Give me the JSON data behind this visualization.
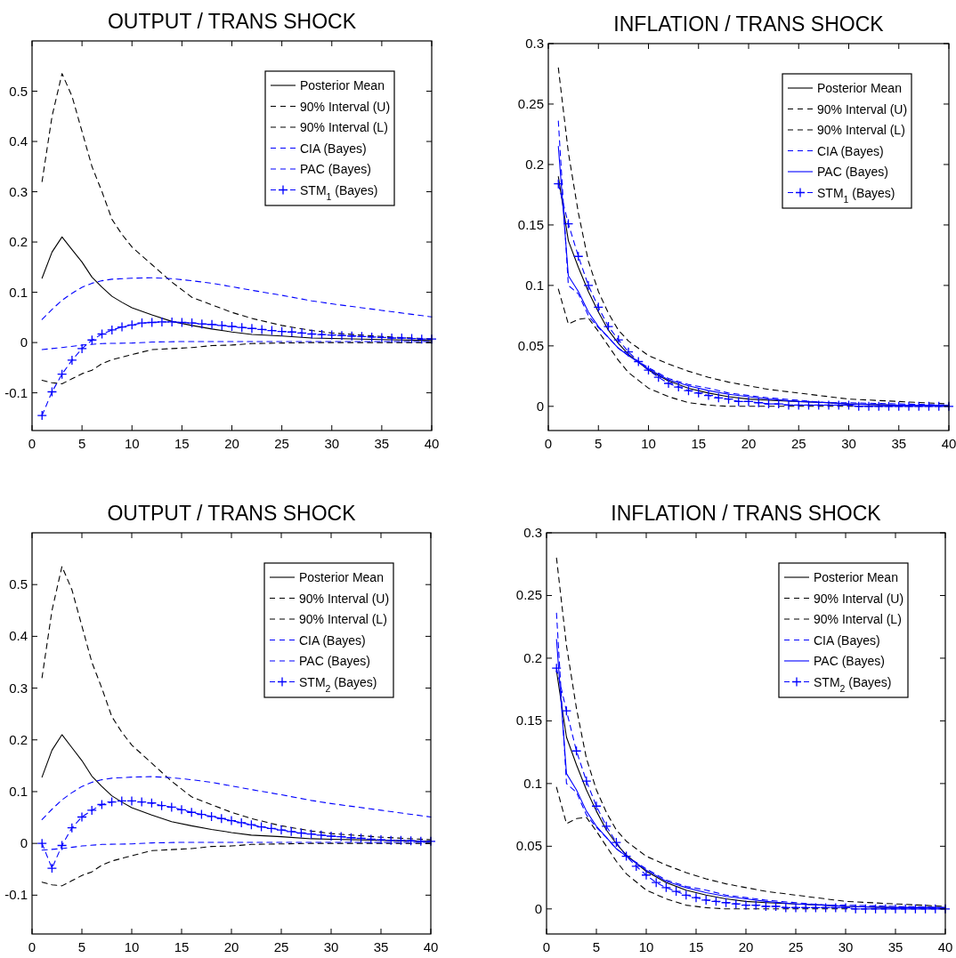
{
  "chart_data": [
    {
      "type": "line",
      "title": "OUTPUT / TRANS SHOCK",
      "xlim": [
        0,
        40
      ],
      "xticks": [
        0,
        5,
        10,
        15,
        20,
        25,
        30,
        35,
        40
      ],
      "ylim": [
        -0.175,
        0.6
      ],
      "yticks": [
        -0.1,
        0,
        0.1,
        0.2,
        0.3,
        0.4,
        0.5
      ],
      "grid": false,
      "legend": "top right",
      "series": [
        {
          "name": "Posterior Mean",
          "color": "#000000",
          "line_style": "solid",
          "marker": "none",
          "x": [
            1,
            2,
            3,
            4,
            5,
            6,
            7,
            8,
            9,
            10,
            12,
            14,
            16,
            18,
            20,
            22,
            25,
            28,
            30,
            35,
            40
          ],
          "values": [
            0.128,
            0.18,
            0.21,
            0.185,
            0.16,
            0.13,
            0.11,
            0.092,
            0.08,
            0.069,
            0.055,
            0.042,
            0.034,
            0.027,
            0.021,
            0.016,
            0.013,
            0.009,
            0.008,
            0.006,
            0.004
          ]
        },
        {
          "name": "90% Interval (U)",
          "color": "#000000",
          "line_style": "dashed",
          "marker": "none",
          "x": [
            1,
            2,
            3,
            4,
            5,
            6,
            7,
            8,
            9,
            10,
            12,
            14,
            16,
            18,
            20,
            22,
            25,
            28,
            30,
            35,
            40
          ],
          "values": [
            0.32,
            0.45,
            0.535,
            0.49,
            0.42,
            0.35,
            0.3,
            0.245,
            0.215,
            0.19,
            0.155,
            0.12,
            0.09,
            0.075,
            0.06,
            0.048,
            0.034,
            0.024,
            0.019,
            0.012,
            0.007
          ]
        },
        {
          "name": "90% Interval (L)",
          "color": "#000000",
          "line_style": "dashed",
          "marker": "none",
          "x": [
            1,
            2,
            3,
            4,
            5,
            6,
            7,
            8,
            10,
            12,
            14,
            16,
            18,
            20,
            22,
            25,
            28,
            30,
            35,
            40
          ],
          "values": [
            -0.075,
            -0.08,
            -0.082,
            -0.072,
            -0.062,
            -0.055,
            -0.042,
            -0.034,
            -0.024,
            -0.014,
            -0.012,
            -0.01,
            -0.006,
            -0.005,
            -0.002,
            -0.001,
            0,
            0,
            0,
            0
          ]
        },
        {
          "name": "CIA (Bayes)",
          "color": "#0000ff",
          "line_style": "dashed",
          "marker": "none",
          "x": [
            1,
            2,
            3,
            4,
            5,
            6,
            7,
            8,
            10,
            12,
            14,
            16,
            18,
            20,
            22,
            25,
            28,
            30,
            35,
            40
          ],
          "values": [
            0.046,
            0.066,
            0.084,
            0.098,
            0.11,
            0.118,
            0.123,
            0.126,
            0.128,
            0.129,
            0.127,
            0.123,
            0.118,
            0.111,
            0.104,
            0.094,
            0.083,
            0.077,
            0.064,
            0.051
          ]
        },
        {
          "name": "PAC (Bayes)",
          "color": "#0000ff",
          "line_style": "dashed",
          "marker": "none",
          "x": [
            1,
            3,
            5,
            7,
            10,
            12,
            15,
            20,
            25,
            30,
            35,
            40
          ],
          "values": [
            -0.014,
            -0.01,
            -0.005,
            -0.002,
            -0.001,
            0.001,
            0.002,
            0.002,
            0.002,
            0.002,
            0.002,
            0.002
          ]
        },
        {
          "name": "STM$_{1}$ (Bayes)",
          "color": "#0000ff",
          "line_style": "dashed",
          "marker": "cross",
          "x": [
            1,
            2,
            3,
            4,
            5,
            6,
            7,
            8,
            9,
            10,
            11,
            12,
            13,
            14,
            15,
            16,
            17,
            18,
            19,
            20,
            21,
            22,
            23,
            24,
            25,
            26,
            27,
            28,
            29,
            30,
            31,
            32,
            33,
            34,
            35,
            36,
            37,
            38,
            39,
            40
          ],
          "values": [
            -0.145,
            -0.098,
            -0.063,
            -0.035,
            -0.012,
            0.005,
            0.017,
            0.025,
            0.031,
            0.035,
            0.039,
            0.04,
            0.041,
            0.041,
            0.04,
            0.039,
            0.037,
            0.036,
            0.034,
            0.032,
            0.03,
            0.028,
            0.026,
            0.024,
            0.022,
            0.021,
            0.019,
            0.017,
            0.016,
            0.015,
            0.014,
            0.013,
            0.012,
            0.011,
            0.01,
            0.009,
            0.009,
            0.008,
            0.007,
            0.007
          ]
        }
      ]
    },
    {
      "type": "line",
      "title": "INFLATION / TRANS SHOCK",
      "xlim": [
        0,
        40
      ],
      "xticks": [
        0,
        5,
        10,
        15,
        20,
        25,
        30,
        35,
        40
      ],
      "ylim": [
        -0.02,
        0.3
      ],
      "yticks": [
        0,
        0.05,
        0.1,
        0.15,
        0.2,
        0.25,
        0.3
      ],
      "grid": false,
      "legend": "top right",
      "series": [
        {
          "name": "Posterior Mean",
          "color": "#000000",
          "line_style": "solid",
          "marker": "none",
          "x": [
            1,
            2,
            3,
            4,
            5,
            6,
            7,
            8,
            10,
            12,
            14,
            16,
            18,
            20,
            22,
            25,
            28,
            30,
            35,
            40
          ],
          "values": [
            0.19,
            0.137,
            0.115,
            0.095,
            0.078,
            0.063,
            0.052,
            0.043,
            0.03,
            0.021,
            0.015,
            0.011,
            0.008,
            0.006,
            0.005,
            0.004,
            0.003,
            0.002,
            0.001,
            0.001
          ]
        },
        {
          "name": "90% Interval (U)",
          "color": "#000000",
          "line_style": "dashed",
          "marker": "none",
          "x": [
            1,
            2,
            3,
            4,
            5,
            6,
            7,
            8,
            10,
            12,
            14,
            16,
            18,
            20,
            22,
            25,
            28,
            30,
            35,
            40
          ],
          "values": [
            0.28,
            0.21,
            0.16,
            0.12,
            0.095,
            0.077,
            0.063,
            0.054,
            0.042,
            0.035,
            0.029,
            0.024,
            0.02,
            0.017,
            0.014,
            0.011,
            0.008,
            0.006,
            0.004,
            0.002
          ]
        },
        {
          "name": "90% Interval (L)",
          "color": "#000000",
          "line_style": "dashed",
          "marker": "none",
          "x": [
            1,
            2,
            3,
            4,
            5,
            6,
            7,
            8,
            10,
            12,
            14,
            16,
            18,
            20,
            22,
            25,
            28,
            30,
            35,
            40
          ],
          "values": [
            0.097,
            0.068,
            0.072,
            0.073,
            0.062,
            0.05,
            0.038,
            0.028,
            0.015,
            0.008,
            0.003,
            0.001,
            0,
            0,
            0,
            0,
            0,
            0,
            0,
            0
          ]
        },
        {
          "name": "CIA (Bayes)",
          "color": "#0000ff",
          "line_style": "dashed",
          "marker": "none",
          "x": [
            1,
            2,
            3,
            4,
            5,
            6,
            7,
            8,
            10,
            12,
            14,
            16,
            18,
            20,
            22,
            25,
            28,
            30,
            35,
            40
          ],
          "values": [
            0.236,
            0.1,
            0.093,
            0.075,
            0.065,
            0.057,
            0.048,
            0.042,
            0.032,
            0.023,
            0.018,
            0.015,
            0.011,
            0.009,
            0.007,
            0.005,
            0.003,
            0.003,
            0.002,
            0.001
          ]
        },
        {
          "name": "PAC (Bayes)",
          "color": "#0000ff",
          "line_style": "solid",
          "marker": "none",
          "x": [
            1,
            2,
            3,
            4,
            5,
            6,
            7,
            8,
            10,
            12,
            14,
            16,
            18,
            20,
            22,
            25,
            28,
            30,
            35,
            40
          ],
          "values": [
            0.215,
            0.108,
            0.095,
            0.078,
            0.066,
            0.057,
            0.048,
            0.042,
            0.031,
            0.022,
            0.017,
            0.013,
            0.01,
            0.008,
            0.006,
            0.004,
            0.003,
            0.002,
            0.001,
            0.001
          ]
        },
        {
          "name": "STM$_{1}$ (Bayes)",
          "color": "#0000ff",
          "line_style": "dashed",
          "marker": "cross",
          "x": [
            1,
            2,
            3,
            4,
            5,
            6,
            7,
            8,
            9,
            10,
            11,
            12,
            13,
            14,
            15,
            16,
            17,
            18,
            19,
            20,
            21,
            22,
            23,
            24,
            25,
            26,
            27,
            28,
            29,
            30,
            31,
            32,
            33,
            34,
            35,
            36,
            37,
            38,
            39,
            40
          ],
          "values": [
            0.184,
            0.151,
            0.124,
            0.1,
            0.082,
            0.066,
            0.055,
            0.045,
            0.037,
            0.03,
            0.024,
            0.019,
            0.016,
            0.013,
            0.011,
            0.009,
            0.007,
            0.006,
            0.004,
            0.004,
            0.003,
            0.002,
            0.002,
            0.001,
            0.001,
            0.001,
            0.001,
            0.001,
            0.001,
            0.001,
            0,
            0,
            0,
            0,
            0,
            0,
            0,
            0,
            0,
            0
          ]
        }
      ]
    },
    {
      "type": "line",
      "title": "OUTPUT / TRANS SHOCK",
      "xlim": [
        0,
        40
      ],
      "xticks": [
        0,
        5,
        10,
        15,
        20,
        25,
        30,
        35,
        40
      ],
      "ylim": [
        -0.175,
        0.6
      ],
      "yticks": [
        -0.1,
        0,
        0.1,
        0.2,
        0.3,
        0.4,
        0.5
      ],
      "grid": false,
      "legend": "top right",
      "series": [
        {
          "name": "Posterior Mean",
          "color": "#000000",
          "line_style": "solid",
          "marker": "none",
          "x": [
            1,
            2,
            3,
            4,
            5,
            6,
            7,
            8,
            9,
            10,
            12,
            14,
            16,
            18,
            20,
            22,
            25,
            28,
            30,
            35,
            40
          ],
          "values": [
            0.128,
            0.18,
            0.21,
            0.185,
            0.16,
            0.13,
            0.11,
            0.092,
            0.08,
            0.069,
            0.055,
            0.042,
            0.034,
            0.027,
            0.021,
            0.016,
            0.013,
            0.009,
            0.008,
            0.006,
            0.004
          ]
        },
        {
          "name": "90% Interval (U)",
          "color": "#000000",
          "line_style": "dashed",
          "marker": "none",
          "x": [
            1,
            2,
            3,
            4,
            5,
            6,
            7,
            8,
            9,
            10,
            12,
            14,
            16,
            18,
            20,
            22,
            25,
            28,
            30,
            35,
            40
          ],
          "values": [
            0.32,
            0.45,
            0.535,
            0.49,
            0.42,
            0.35,
            0.3,
            0.245,
            0.215,
            0.19,
            0.155,
            0.12,
            0.09,
            0.075,
            0.06,
            0.048,
            0.034,
            0.024,
            0.019,
            0.012,
            0.007
          ]
        },
        {
          "name": "90% Interval (L)",
          "color": "#000000",
          "line_style": "dashed",
          "marker": "none",
          "x": [
            1,
            2,
            3,
            4,
            5,
            6,
            7,
            8,
            10,
            12,
            14,
            16,
            18,
            20,
            22,
            25,
            28,
            30,
            35,
            40
          ],
          "values": [
            -0.075,
            -0.08,
            -0.082,
            -0.072,
            -0.062,
            -0.055,
            -0.042,
            -0.034,
            -0.024,
            -0.014,
            -0.012,
            -0.01,
            -0.006,
            -0.005,
            -0.002,
            -0.001,
            0,
            0,
            0,
            0
          ]
        },
        {
          "name": "CIA (Bayes)",
          "color": "#0000ff",
          "line_style": "dashed",
          "marker": "none",
          "x": [
            1,
            2,
            3,
            4,
            5,
            6,
            7,
            8,
            10,
            12,
            14,
            16,
            18,
            20,
            22,
            25,
            28,
            30,
            35,
            40
          ],
          "values": [
            0.046,
            0.066,
            0.084,
            0.098,
            0.11,
            0.118,
            0.123,
            0.126,
            0.128,
            0.129,
            0.127,
            0.123,
            0.118,
            0.111,
            0.104,
            0.094,
            0.083,
            0.077,
            0.064,
            0.051
          ]
        },
        {
          "name": "PAC (Bayes)",
          "color": "#0000ff",
          "line_style": "dashed",
          "marker": "none",
          "x": [
            1,
            3,
            5,
            7,
            10,
            12,
            15,
            20,
            25,
            30,
            35,
            40
          ],
          "values": [
            -0.013,
            -0.01,
            -0.005,
            -0.002,
            -0.001,
            0.001,
            0.002,
            0.002,
            0.002,
            0.002,
            0.002,
            0.002
          ]
        },
        {
          "name": "STM$_{2}$ (Bayes)",
          "color": "#0000ff",
          "line_style": "dashed",
          "marker": "cross",
          "x": [
            1,
            2,
            3,
            4,
            5,
            6,
            7,
            8,
            9,
            10,
            11,
            12,
            13,
            14,
            15,
            16,
            17,
            18,
            19,
            20,
            21,
            22,
            23,
            24,
            25,
            26,
            27,
            28,
            29,
            30,
            31,
            32,
            33,
            34,
            35,
            36,
            37,
            38,
            39,
            40
          ],
          "values": [
            0,
            -0.048,
            -0.004,
            0.03,
            0.051,
            0.064,
            0.075,
            0.08,
            0.082,
            0.082,
            0.08,
            0.078,
            0.073,
            0.07,
            0.065,
            0.06,
            0.056,
            0.052,
            0.048,
            0.044,
            0.04,
            0.036,
            0.032,
            0.029,
            0.026,
            0.023,
            0.02,
            0.018,
            0.016,
            0.014,
            0.013,
            0.011,
            0.01,
            0.008,
            0.007,
            0.006,
            0.006,
            0.005,
            0.004,
            0.004
          ]
        }
      ]
    },
    {
      "type": "line",
      "title": "INFLATION / TRANS SHOCK",
      "xlim": [
        0,
        40
      ],
      "xticks": [
        0,
        5,
        10,
        15,
        20,
        25,
        30,
        35,
        40
      ],
      "ylim": [
        -0.02,
        0.3
      ],
      "yticks": [
        0,
        0.05,
        0.1,
        0.15,
        0.2,
        0.25,
        0.3
      ],
      "grid": false,
      "legend": "top right",
      "series": [
        {
          "name": "Posterior Mean",
          "color": "#000000",
          "line_style": "solid",
          "marker": "none",
          "x": [
            1,
            2,
            3,
            4,
            5,
            6,
            7,
            8,
            10,
            12,
            14,
            16,
            18,
            20,
            22,
            25,
            28,
            30,
            35,
            40
          ],
          "values": [
            0.19,
            0.137,
            0.115,
            0.095,
            0.078,
            0.063,
            0.052,
            0.043,
            0.03,
            0.021,
            0.015,
            0.011,
            0.008,
            0.006,
            0.005,
            0.004,
            0.003,
            0.002,
            0.001,
            0.001
          ]
        },
        {
          "name": "90% Interval (U)",
          "color": "#000000",
          "line_style": "dashed",
          "marker": "none",
          "x": [
            1,
            2,
            3,
            4,
            5,
            6,
            7,
            8,
            10,
            12,
            14,
            16,
            18,
            20,
            22,
            25,
            28,
            30,
            35,
            40
          ],
          "values": [
            0.28,
            0.21,
            0.16,
            0.12,
            0.095,
            0.077,
            0.063,
            0.054,
            0.042,
            0.035,
            0.029,
            0.024,
            0.02,
            0.017,
            0.014,
            0.011,
            0.008,
            0.006,
            0.004,
            0.002
          ]
        },
        {
          "name": "90% Interval (L)",
          "color": "#000000",
          "line_style": "dashed",
          "marker": "none",
          "x": [
            1,
            2,
            3,
            4,
            5,
            6,
            7,
            8,
            10,
            12,
            14,
            16,
            18,
            20,
            22,
            25,
            28,
            30,
            35,
            40
          ],
          "values": [
            0.097,
            0.068,
            0.072,
            0.073,
            0.062,
            0.05,
            0.038,
            0.028,
            0.015,
            0.008,
            0.003,
            0.001,
            0,
            0,
            0,
            0,
            0,
            0,
            0,
            0
          ]
        },
        {
          "name": "CIA (Bayes)",
          "color": "#0000ff",
          "line_style": "dashed",
          "marker": "none",
          "x": [
            1,
            2,
            3,
            4,
            5,
            6,
            7,
            8,
            10,
            12,
            14,
            16,
            18,
            20,
            22,
            25,
            28,
            30,
            35,
            40
          ],
          "values": [
            0.236,
            0.1,
            0.093,
            0.075,
            0.065,
            0.057,
            0.048,
            0.042,
            0.032,
            0.023,
            0.018,
            0.015,
            0.011,
            0.009,
            0.007,
            0.005,
            0.003,
            0.003,
            0.002,
            0.001
          ]
        },
        {
          "name": "PAC (Bayes)",
          "color": "#0000ff",
          "line_style": "solid",
          "marker": "none",
          "x": [
            1,
            2,
            3,
            4,
            5,
            6,
            7,
            8,
            10,
            12,
            14,
            16,
            18,
            20,
            22,
            25,
            28,
            30,
            35,
            40
          ],
          "values": [
            0.215,
            0.108,
            0.095,
            0.078,
            0.066,
            0.057,
            0.048,
            0.042,
            0.031,
            0.022,
            0.017,
            0.013,
            0.01,
            0.008,
            0.006,
            0.004,
            0.003,
            0.002,
            0.001,
            0.001
          ]
        },
        {
          "name": "STM$_{2}$ (Bayes)",
          "color": "#0000ff",
          "line_style": "dashed",
          "marker": "cross",
          "x": [
            1,
            2,
            3,
            4,
            5,
            6,
            7,
            8,
            9,
            10,
            11,
            12,
            13,
            14,
            15,
            16,
            17,
            18,
            19,
            20,
            21,
            22,
            23,
            24,
            25,
            26,
            27,
            28,
            29,
            30,
            31,
            32,
            33,
            34,
            35,
            36,
            37,
            38,
            39,
            40
          ],
          "values": [
            0.192,
            0.158,
            0.126,
            0.102,
            0.082,
            0.066,
            0.053,
            0.042,
            0.034,
            0.027,
            0.021,
            0.017,
            0.014,
            0.011,
            0.009,
            0.007,
            0.006,
            0.005,
            0.004,
            0.003,
            0.003,
            0.002,
            0.002,
            0.001,
            0.001,
            0.001,
            0.001,
            0.001,
            0.001,
            0.001,
            0,
            0,
            0,
            0,
            0,
            0,
            0,
            0,
            0,
            0
          ]
        }
      ]
    }
  ]
}
